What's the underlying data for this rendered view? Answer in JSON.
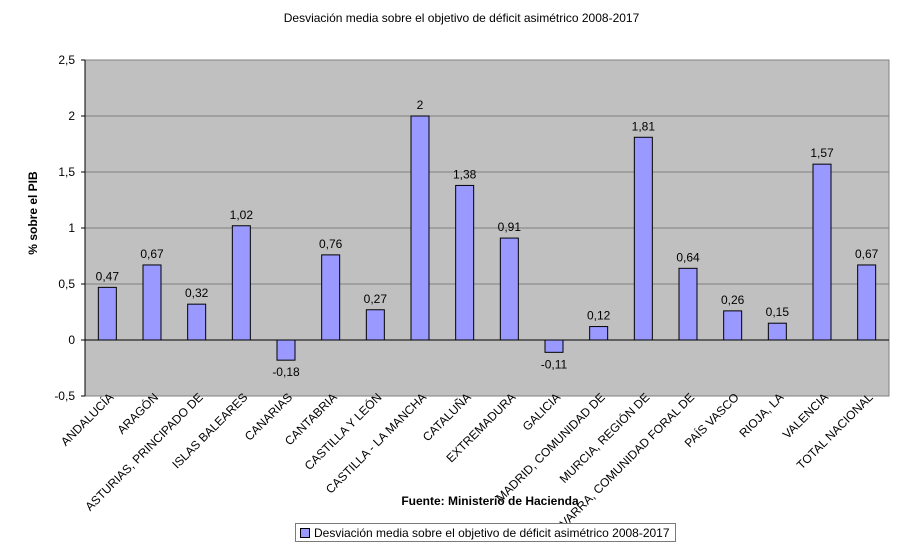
{
  "chart_data": {
    "type": "bar",
    "title": "Desviación media sobre el objetivo de déficit asimétrico 2008-2017",
    "xlabel": "Fuente: Ministerio de Hacienda",
    "ylabel": "% sobre el PIB",
    "ylim": [
      -0.5,
      2.5
    ],
    "yticks": [
      2.5,
      2,
      1.5,
      1,
      0.5,
      0,
      -0.5
    ],
    "ytick_labels": [
      "2,5",
      "2",
      "1,5",
      "1",
      "0,5",
      "0",
      "-0,5"
    ],
    "grid": true,
    "legend_position": "bottom",
    "categories": [
      "ANDALUCÍA",
      "ARAGÓN",
      "ASTURIAS, PRINCIPADO DE",
      "ISLAS BALEARES",
      "CANARIAS",
      "CANTABRIA",
      "CASTILLA Y LEÓN",
      "CASTILLA - LA MANCHA",
      "CATALUÑA",
      "EXTREMADURA",
      "GALICIA",
      "MADRID, COMUNIDAD DE",
      "MURCIA, REGIÓN DE",
      "NAVARRA, COMUNIDAD FORAL DE",
      "PAÍS VASCO",
      "RIOJA, LA",
      "VALENCIA",
      "TOTAL NACIONAL"
    ],
    "series": [
      {
        "name": "Desviación media sobre el objetivo de déficit asimétrico 2008-2017",
        "color": "#9999ff",
        "values": [
          0.47,
          0.67,
          0.32,
          1.02,
          -0.18,
          0.76,
          0.27,
          2,
          1.38,
          0.91,
          -0.11,
          0.12,
          1.81,
          0.64,
          0.26,
          0.15,
          1.57,
          0.67
        ],
        "labels": [
          "0,47",
          "0,67",
          "0,32",
          "1,02",
          "-0,18",
          "0,76",
          "0,27",
          "2",
          "1,38",
          "0,91",
          "-0,11",
          "0,12",
          "1,81",
          "0,64",
          "0,26",
          "0,15",
          "1,57",
          "0,67"
        ]
      }
    ]
  },
  "colors": {
    "plot_bg": "#c0c0c0",
    "bar_fill": "#9999ff",
    "grid": "#808080"
  }
}
